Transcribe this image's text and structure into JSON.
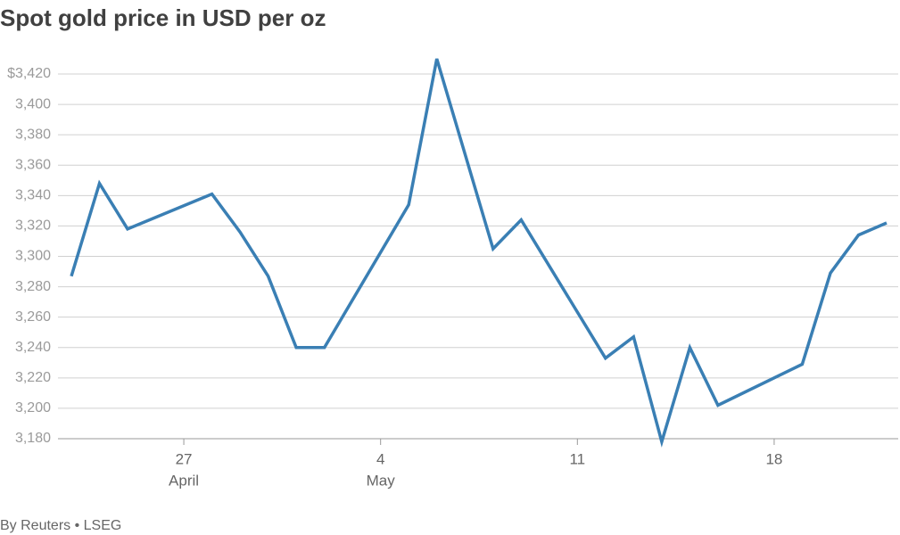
{
  "chart_data": {
    "type": "line",
    "title": "Spot gold price in USD per oz",
    "source": "By Reuters • LSEG",
    "x": [
      "April 23",
      "April 24",
      "April 25",
      "April 28",
      "April 29",
      "April 30",
      "May 1",
      "May 2",
      "May 5",
      "May 6",
      "May 8",
      "May 9",
      "May 12",
      "May 13",
      "May 14",
      "May 15",
      "May 16",
      "May 19",
      "May 20",
      "May 21",
      "May 22"
    ],
    "series": [
      {
        "name": "Spot gold",
        "color": "#3a7fb4",
        "values": [
          3287,
          3348,
          3318,
          3341,
          3316,
          3287,
          3240,
          3240,
          3334,
          3430,
          3305,
          3324,
          3233,
          3247,
          3178,
          3240,
          3202,
          3229,
          3289,
          3314,
          3322
        ]
      }
    ],
    "xticks": [
      {
        "value": "April 27",
        "label": [
          "27",
          "April"
        ]
      },
      {
        "value": "May 4",
        "label": [
          "4",
          "May"
        ]
      },
      {
        "value": "May 11",
        "label": [
          "11"
        ]
      },
      {
        "value": "May 18",
        "label": [
          "18"
        ]
      }
    ],
    "ylim": [
      3180,
      3420
    ],
    "yticks": [
      {
        "value": 3180,
        "label": "3,180"
      },
      {
        "value": 3200,
        "label": "3,200"
      },
      {
        "value": 3220,
        "label": "3,220"
      },
      {
        "value": 3240,
        "label": "3,240"
      },
      {
        "value": 3260,
        "label": "3,260"
      },
      {
        "value": 3280,
        "label": "3,280"
      },
      {
        "value": 3300,
        "label": "3,300"
      },
      {
        "value": 3320,
        "label": "3,320"
      },
      {
        "value": 3340,
        "label": "3,340"
      },
      {
        "value": 3360,
        "label": "3,360"
      },
      {
        "value": 3380,
        "label": "3,380"
      },
      {
        "value": 3400,
        "label": "3,400"
      },
      {
        "value": 3420,
        "label": "$3,420"
      }
    ],
    "grid": true
  }
}
